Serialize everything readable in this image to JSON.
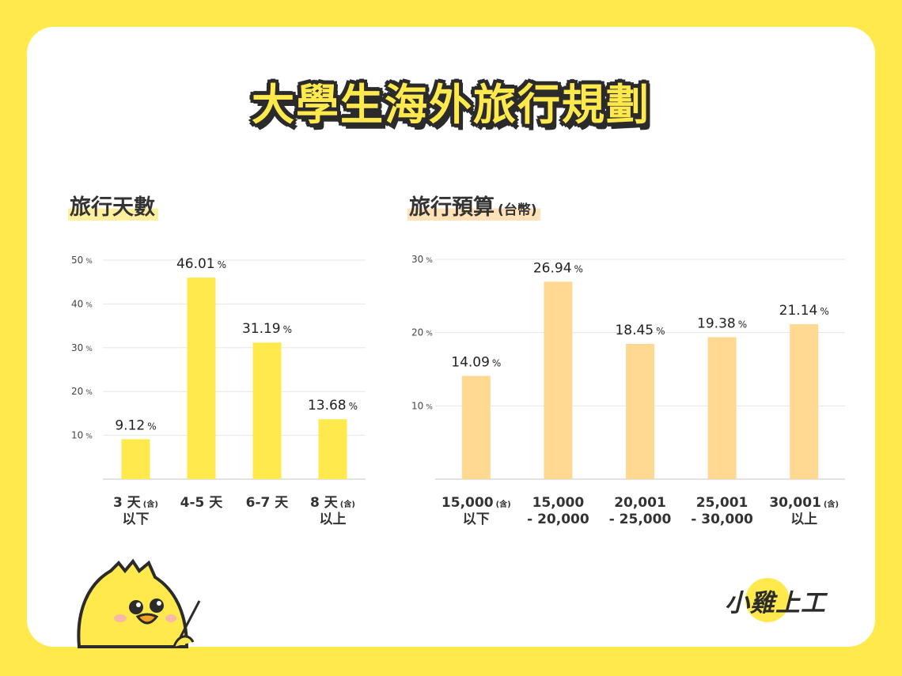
{
  "title": "大學生海外旅行規劃",
  "sections": {
    "days": {
      "title": "旅行天數",
      "subtitle": ""
    },
    "budget": {
      "title": "旅行預算",
      "subtitle": "(台幣)"
    }
  },
  "logo_text": "小雞上工",
  "colors": {
    "background": "#FFE94C",
    "days_bar": "#FFE94C",
    "budget_bar": "#FFD891",
    "grid": "#e6e6e6"
  },
  "chart_data": [
    {
      "type": "bar",
      "title": "旅行天數",
      "unit": "%",
      "categories": [
        {
          "line1": "3 天",
          "note": "(含)",
          "line2": "以下"
        },
        {
          "line1": "4-5 天",
          "note": "",
          "line2": ""
        },
        {
          "line1": "6-7 天",
          "note": "",
          "line2": ""
        },
        {
          "line1": "8 天",
          "note": "(含)",
          "line2": "以上"
        }
      ],
      "values": [
        9.12,
        46.01,
        31.19,
        13.68
      ],
      "yticks": [
        10,
        20,
        30,
        40,
        50
      ],
      "ylim": [
        0,
        50
      ],
      "grid": true
    },
    {
      "type": "bar",
      "title": "旅行預算",
      "subtitle": "(台幣)",
      "unit": "%",
      "categories": [
        {
          "line1": "15,000",
          "note": "(含)",
          "line2": "以下"
        },
        {
          "line1": "15,000",
          "note": "",
          "line2": "- 20,000"
        },
        {
          "line1": "20,001",
          "note": "",
          "line2": "- 25,000"
        },
        {
          "line1": "25,001",
          "note": "",
          "line2": "- 30,000"
        },
        {
          "line1": "30,001",
          "note": "(含)",
          "line2": "以上"
        }
      ],
      "values": [
        14.09,
        26.94,
        18.45,
        19.38,
        21.14
      ],
      "yticks": [
        10,
        20,
        30
      ],
      "ylim": [
        0,
        30
      ],
      "grid": true
    }
  ]
}
